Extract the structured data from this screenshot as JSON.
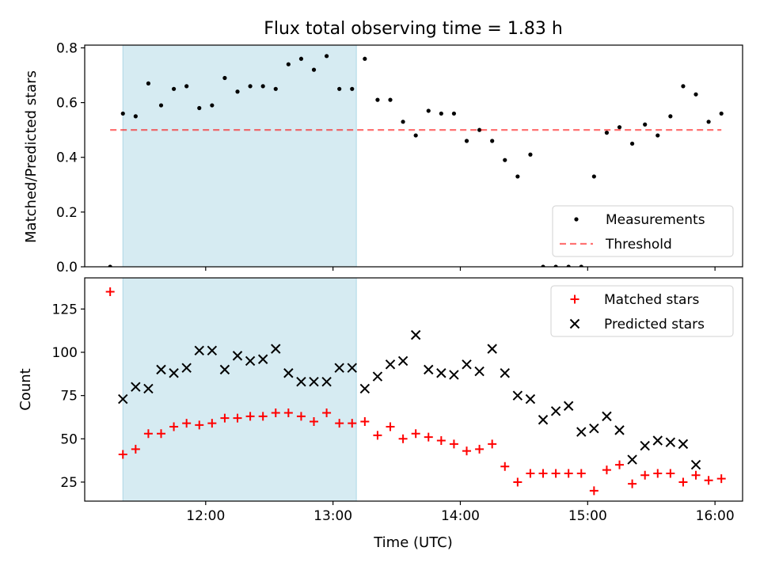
{
  "title": "Flux total observing time = 1.83 h",
  "colors": {
    "shade": "#add8e6",
    "threshold": "#ff0000",
    "matched": "#ff0000",
    "predicted": "#000000",
    "measurement": "#000000"
  },
  "chart_data": [
    {
      "type": "scatter",
      "ylabel": "Matched/Predicted stars",
      "xlabel": "",
      "ylim": [
        0,
        0.81
      ],
      "xlim": [
        "11:03",
        "16:13"
      ],
      "yticks": [
        "0.0",
        "0.2",
        "0.4",
        "0.6",
        "0.8"
      ],
      "shaded_interval": [
        "11:21",
        "13:11"
      ],
      "threshold": 0.5,
      "legend": {
        "placement": "lower-right",
        "entries": [
          "Measurements",
          "Threshold"
        ]
      },
      "series": [
        {
          "name": "Measurements",
          "marker": "dot",
          "x": [
            "11:15",
            "11:21",
            "11:27",
            "11:33",
            "11:39",
            "11:45",
            "11:51",
            "11:57",
            "12:03",
            "12:09",
            "12:15",
            "12:21",
            "12:27",
            "12:33",
            "12:39",
            "12:45",
            "12:51",
            "12:57",
            "13:03",
            "13:09",
            "13:15",
            "13:21",
            "13:27",
            "13:33",
            "13:39",
            "13:45",
            "13:51",
            "13:57",
            "14:03",
            "14:09",
            "14:15",
            "14:21",
            "14:27",
            "14:33",
            "14:39",
            "14:45",
            "14:51",
            "14:57",
            "15:03",
            "15:09",
            "15:15",
            "15:21",
            "15:27",
            "15:33",
            "15:39",
            "15:45",
            "15:51",
            "15:57",
            "16:03"
          ],
          "y": [
            0.0,
            0.56,
            0.55,
            0.67,
            0.59,
            0.65,
            0.66,
            0.58,
            0.59,
            0.69,
            0.64,
            0.66,
            0.66,
            0.65,
            0.74,
            0.76,
            0.72,
            0.77,
            0.65,
            0.65,
            0.76,
            0.61,
            0.61,
            0.53,
            0.48,
            0.57,
            0.56,
            0.56,
            0.46,
            0.5,
            0.46,
            0.39,
            0.33,
            0.41,
            0.0,
            0.0,
            0.0,
            0.0,
            0.33,
            0.49,
            0.51,
            0.45,
            0.52,
            0.48,
            0.55,
            0.66,
            0.63,
            0.53,
            0.56
          ]
        },
        {
          "name": "Threshold",
          "line": "dashed",
          "x": [
            "11:15",
            "16:03"
          ],
          "y": [
            0.5,
            0.5
          ]
        }
      ]
    },
    {
      "type": "scatter",
      "xlabel": "Time (UTC)",
      "ylabel": "Count",
      "ylim": [
        14,
        143
      ],
      "xlim": [
        "11:03",
        "16:13"
      ],
      "xticks": [
        "12:00",
        "13:00",
        "14:00",
        "15:00",
        "16:00"
      ],
      "yticks": [
        "25",
        "50",
        "75",
        "100",
        "125"
      ],
      "shaded_interval": [
        "11:21",
        "13:11"
      ],
      "legend": {
        "placement": "upper-right",
        "entries": [
          "Matched stars",
          "Predicted stars"
        ]
      },
      "series": [
        {
          "name": "Matched stars",
          "marker": "plus",
          "x": [
            "11:15",
            "11:21",
            "11:27",
            "11:33",
            "11:39",
            "11:45",
            "11:51",
            "11:57",
            "12:03",
            "12:09",
            "12:15",
            "12:21",
            "12:27",
            "12:33",
            "12:39",
            "12:45",
            "12:51",
            "12:57",
            "13:03",
            "13:09",
            "13:15",
            "13:21",
            "13:27",
            "13:33",
            "13:39",
            "13:45",
            "13:51",
            "13:57",
            "14:03",
            "14:09",
            "14:15",
            "14:21",
            "14:27",
            "14:33",
            "14:39",
            "14:45",
            "14:51",
            "14:57",
            "15:03",
            "15:09",
            "15:15",
            "15:21",
            "15:27",
            "15:33",
            "15:39",
            "15:45",
            "15:51",
            "15:57",
            "16:03"
          ],
          "y": [
            135,
            41,
            44,
            53,
            53,
            57,
            59,
            58,
            59,
            62,
            62,
            63,
            63,
            65,
            65,
            63,
            60,
            65,
            59,
            59,
            60,
            52,
            57,
            50,
            53,
            51,
            49,
            47,
            43,
            44,
            47,
            34,
            25,
            30,
            30,
            30,
            30,
            30,
            20,
            32,
            35,
            24,
            29,
            30,
            30,
            25,
            29,
            26,
            27
          ]
        },
        {
          "name": "Predicted stars",
          "marker": "x",
          "x": [
            "11:21",
            "11:27",
            "11:33",
            "11:39",
            "11:45",
            "11:51",
            "11:57",
            "12:03",
            "12:09",
            "12:15",
            "12:21",
            "12:27",
            "12:33",
            "12:39",
            "12:45",
            "12:51",
            "12:57",
            "13:03",
            "13:09",
            "13:15",
            "13:21",
            "13:27",
            "13:33",
            "13:39",
            "13:45",
            "13:51",
            "13:57",
            "14:03",
            "14:09",
            "14:15",
            "14:21",
            "14:27",
            "14:33",
            "14:39",
            "14:45",
            "14:51",
            "14:57",
            "15:03",
            "15:09",
            "15:15",
            "15:21",
            "15:27",
            "15:33",
            "15:39",
            "15:45",
            "15:51"
          ],
          "y": [
            73,
            80,
            79,
            90,
            88,
            91,
            101,
            101,
            90,
            98,
            95,
            96,
            102,
            88,
            83,
            83,
            83,
            91,
            91,
            79,
            86,
            93,
            95,
            110,
            90,
            88,
            87,
            93,
            89,
            102,
            88,
            75,
            73,
            61,
            66,
            69,
            54,
            56,
            63,
            55,
            38,
            46,
            49,
            48,
            47,
            35
          ]
        }
      ]
    }
  ]
}
